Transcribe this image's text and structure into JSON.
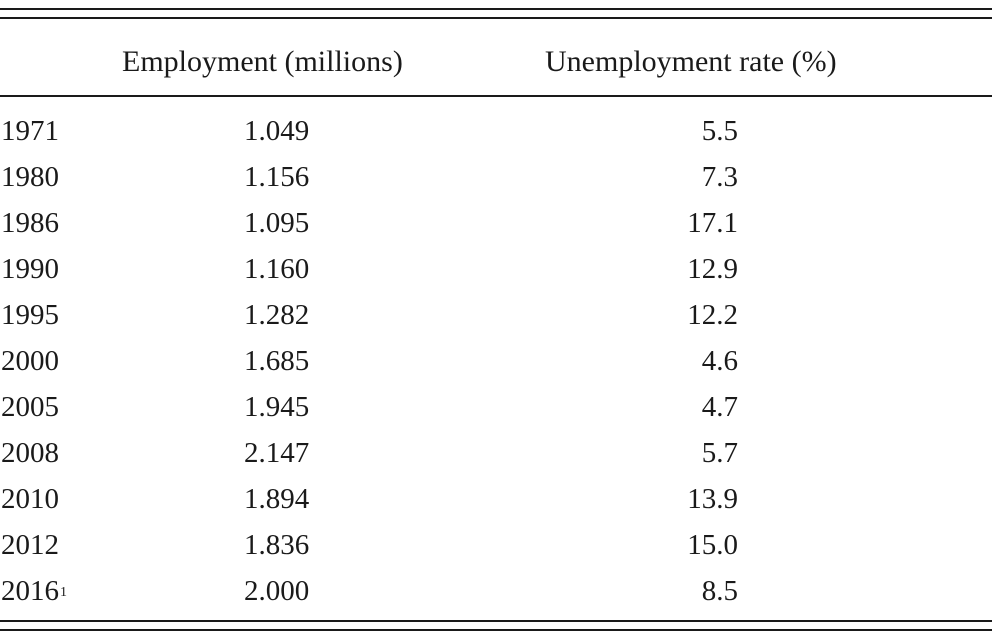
{
  "table": {
    "headers": {
      "employment": "Employment (millions)",
      "unemployment": "Unemployment rate (%)"
    },
    "rows": [
      {
        "year": "1971",
        "note": "",
        "employment": "1.049",
        "unemployment": "5.5"
      },
      {
        "year": "1980",
        "note": "",
        "employment": "1.156",
        "unemployment": "7.3"
      },
      {
        "year": "1986",
        "note": "",
        "employment": "1.095",
        "unemployment": "17.1"
      },
      {
        "year": "1990",
        "note": "",
        "employment": "1.160",
        "unemployment": "12.9"
      },
      {
        "year": "1995",
        "note": "",
        "employment": "1.282",
        "unemployment": "12.2"
      },
      {
        "year": "2000",
        "note": "",
        "employment": "1.685",
        "unemployment": "4.6"
      },
      {
        "year": "2005",
        "note": "",
        "employment": "1.945",
        "unemployment": "4.7"
      },
      {
        "year": "2008",
        "note": "",
        "employment": "2.147",
        "unemployment": "5.7"
      },
      {
        "year": "2010",
        "note": "",
        "employment": "1.894",
        "unemployment": "13.9"
      },
      {
        "year": "2012",
        "note": "",
        "employment": "1.836",
        "unemployment": "15.0"
      },
      {
        "year": "2016",
        "note": "1",
        "employment": "2.000",
        "unemployment": "8.5"
      }
    ]
  }
}
